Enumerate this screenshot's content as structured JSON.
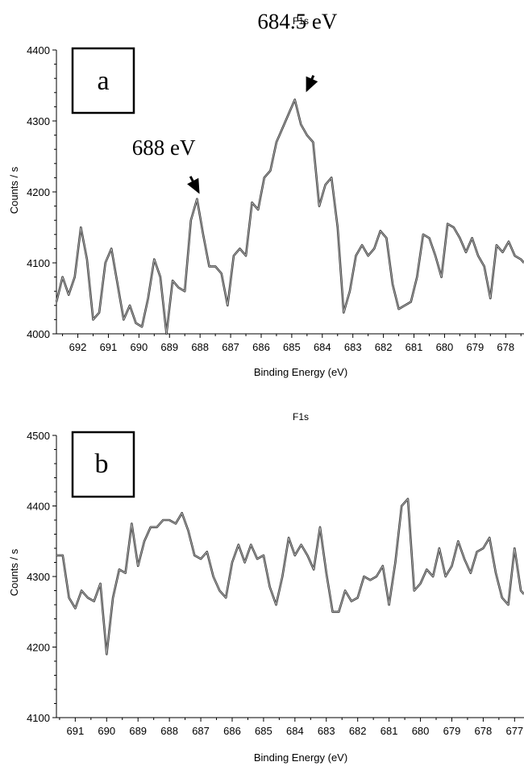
{
  "chart_data": [
    {
      "type": "line",
      "panel_label": "a",
      "title": "F1s",
      "xlabel": "Binding Energy (eV)",
      "ylabel": "Counts / s",
      "x_reversed": true,
      "xlim": [
        692.7,
        677.4
      ],
      "ylim": [
        4000,
        4400
      ],
      "x_ticks": [
        692,
        691,
        690,
        689,
        688,
        687,
        686,
        685,
        684,
        683,
        682,
        681,
        680,
        679,
        678
      ],
      "y_ticks": [
        4000,
        4100,
        4200,
        4300,
        4400
      ],
      "grid": false,
      "series": [
        {
          "x": [
            692.7,
            692.5,
            692.3,
            692.1,
            691.9,
            691.7,
            691.5,
            691.3,
            691.1,
            690.9,
            690.7,
            690.5,
            690.3,
            690.1,
            689.9,
            689.7,
            689.5,
            689.3,
            689.1,
            688.9,
            688.7,
            688.5,
            688.3,
            688.1,
            687.9,
            687.7,
            687.5,
            687.3,
            687.1,
            686.9,
            686.7,
            686.5,
            686.3,
            686.1,
            685.9,
            685.7,
            685.5,
            685.3,
            685.1,
            684.9,
            684.7,
            684.5,
            684.3,
            684.1,
            683.9,
            683.7,
            683.5,
            683.3,
            683.1,
            682.9,
            682.7,
            682.5,
            682.3,
            682.1,
            681.9,
            681.7,
            681.5,
            681.3,
            681.1,
            680.9,
            680.7,
            680.5,
            680.3,
            680.1,
            679.9,
            679.7,
            679.5,
            679.3,
            679.1,
            678.9,
            678.7,
            678.5,
            678.3,
            678.1,
            677.9,
            677.7,
            677.5,
            677.4
          ],
          "y": [
            4045,
            4080,
            4055,
            4080,
            4150,
            4105,
            4020,
            4030,
            4100,
            4120,
            4070,
            4020,
            4040,
            4015,
            4010,
            4050,
            4105,
            4080,
            4000,
            4075,
            4065,
            4060,
            4160,
            4190,
            4140,
            4095,
            4095,
            4085,
            4040,
            4110,
            4120,
            4110,
            4185,
            4175,
            4220,
            4230,
            4270,
            4290,
            4310,
            4330,
            4295,
            4280,
            4270,
            4180,
            4210,
            4220,
            4150,
            4030,
            4060,
            4110,
            4125,
            4110,
            4120,
            4145,
            4135,
            4070,
            4035,
            4040,
            4045,
            4080,
            4140,
            4135,
            4110,
            4080,
            4155,
            4150,
            4135,
            4115,
            4135,
            4110,
            4095,
            4050,
            4125,
            4115,
            4130,
            4110,
            4105,
            4100
          ]
        }
      ],
      "annotations": [
        {
          "text": "688 eV",
          "x": 688,
          "y": 4190
        },
        {
          "text": "684.5 eV",
          "x": 684.5,
          "y": 4330
        }
      ]
    },
    {
      "type": "line",
      "panel_label": "b",
      "title": "F1s",
      "xlabel": "Binding Energy (eV)",
      "ylabel": "Counts / s",
      "x_reversed": true,
      "xlim": [
        691.6,
        676.7
      ],
      "ylim": [
        4100,
        4500
      ],
      "x_ticks": [
        691,
        690,
        689,
        688,
        687,
        686,
        685,
        684,
        683,
        682,
        681,
        680,
        679,
        678,
        677
      ],
      "y_ticks": [
        4100,
        4200,
        4300,
        4400,
        4500
      ],
      "grid": false,
      "series": [
        {
          "x": [
            691.6,
            691.4,
            691.2,
            691.0,
            690.8,
            690.6,
            690.4,
            690.2,
            690.0,
            689.8,
            689.6,
            689.4,
            689.2,
            689.0,
            688.8,
            688.6,
            688.4,
            688.2,
            688.0,
            687.8,
            687.6,
            687.4,
            687.2,
            687.0,
            686.8,
            686.6,
            686.4,
            686.2,
            686.0,
            685.8,
            685.6,
            685.4,
            685.2,
            685.0,
            684.8,
            684.6,
            684.4,
            684.2,
            684.0,
            683.8,
            683.6,
            683.4,
            683.2,
            683.0,
            682.8,
            682.6,
            682.4,
            682.2,
            682.0,
            681.8,
            681.6,
            681.4,
            681.2,
            681.0,
            680.8,
            680.6,
            680.4,
            680.2,
            680.0,
            679.8,
            679.6,
            679.4,
            679.2,
            679.0,
            678.8,
            678.6,
            678.4,
            678.2,
            678.0,
            677.8,
            677.6,
            677.4,
            677.2,
            677.0,
            676.8,
            676.7
          ],
          "y": [
            4330,
            4330,
            4270,
            4255,
            4280,
            4270,
            4265,
            4290,
            4190,
            4270,
            4310,
            4305,
            4375,
            4315,
            4350,
            4370,
            4370,
            4380,
            4380,
            4375,
            4390,
            4365,
            4330,
            4325,
            4335,
            4300,
            4280,
            4270,
            4320,
            4345,
            4320,
            4345,
            4325,
            4330,
            4285,
            4260,
            4300,
            4355,
            4330,
            4345,
            4330,
            4310,
            4370,
            4305,
            4250,
            4250,
            4280,
            4265,
            4270,
            4300,
            4295,
            4300,
            4315,
            4260,
            4320,
            4400,
            4410,
            4280,
            4290,
            4310,
            4300,
            4340,
            4300,
            4315,
            4350,
            4325,
            4305,
            4335,
            4340,
            4355,
            4305,
            4270,
            4260,
            4340,
            4280,
            4275
          ]
        }
      ],
      "annotations": []
    }
  ],
  "colors": {
    "line_outer": "#333333",
    "line_inner": "#b4b4b4",
    "axis": "#000000"
  }
}
